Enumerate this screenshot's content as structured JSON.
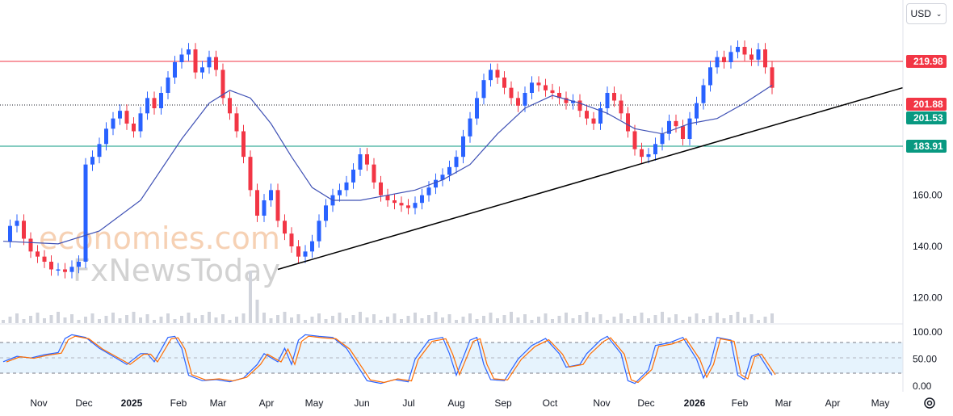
{
  "currency": {
    "label": "USD"
  },
  "watermark": {
    "line1": "economies.com",
    "line2": "FxNewsToday"
  },
  "chart_data": {
    "type": "candlestick",
    "price_axis": {
      "min": 110,
      "max": 230,
      "ticks": [
        "180.00",
        "160.00",
        "140.00",
        "120.00"
      ]
    },
    "oscillator_axis": {
      "ticks": [
        "100.00",
        "50.00",
        "0.00"
      ]
    },
    "x_ticks": [
      {
        "label": "Nov",
        "bold": false
      },
      {
        "label": "Dec",
        "bold": false
      },
      {
        "label": "2025",
        "bold": true
      },
      {
        "label": "Feb",
        "bold": false
      },
      {
        "label": "Mar",
        "bold": false
      },
      {
        "label": "Apr",
        "bold": false
      },
      {
        "label": "May",
        "bold": false
      },
      {
        "label": "Jun",
        "bold": false
      },
      {
        "label": "Jul",
        "bold": false
      },
      {
        "label": "Aug",
        "bold": false
      },
      {
        "label": "Sep",
        "bold": false
      },
      {
        "label": "Oct",
        "bold": false
      },
      {
        "label": "Nov",
        "bold": false
      },
      {
        "label": "Dec",
        "bold": false
      },
      {
        "label": "2026",
        "bold": true
      },
      {
        "label": "Feb",
        "bold": false
      },
      {
        "label": "Mar",
        "bold": false
      },
      {
        "label": "Apr",
        "bold": false
      },
      {
        "label": "May",
        "bold": false
      }
    ],
    "levels": [
      {
        "value": "219.98",
        "color": "#f23645",
        "line": "solid"
      },
      {
        "value": "201.88",
        "color": "#f23645",
        "line": "dotted"
      },
      {
        "value": "201.53",
        "color": "#089981",
        "line": "none"
      },
      {
        "value": "183.91",
        "color": "#089981",
        "line": "solid"
      }
    ],
    "close_path": [
      [
        0,
        142
      ],
      [
        1,
        148
      ],
      [
        2,
        150
      ],
      [
        3,
        143
      ],
      [
        4,
        138
      ],
      [
        5,
        136
      ],
      [
        6,
        134
      ],
      [
        7,
        131
      ],
      [
        8,
        131
      ],
      [
        9,
        130
      ],
      [
        10,
        132
      ],
      [
        11,
        134
      ],
      [
        12,
        172
      ],
      [
        13,
        175
      ],
      [
        14,
        180
      ],
      [
        15,
        186
      ],
      [
        16,
        190
      ],
      [
        17,
        193
      ],
      [
        18,
        188
      ],
      [
        19,
        185
      ],
      [
        20,
        192
      ],
      [
        21,
        198
      ],
      [
        22,
        194
      ],
      [
        23,
        200
      ],
      [
        24,
        206
      ],
      [
        25,
        212
      ],
      [
        26,
        215
      ],
      [
        27,
        217
      ],
      [
        28,
        208
      ],
      [
        29,
        210
      ],
      [
        30,
        214
      ],
      [
        31,
        209
      ],
      [
        32,
        198
      ],
      [
        33,
        192
      ],
      [
        34,
        185
      ],
      [
        35,
        175
      ],
      [
        36,
        162
      ],
      [
        37,
        152
      ],
      [
        38,
        158
      ],
      [
        39,
        162
      ],
      [
        40,
        150
      ],
      [
        41,
        145
      ],
      [
        42,
        140
      ],
      [
        43,
        136
      ],
      [
        44,
        138
      ],
      [
        45,
        142
      ],
      [
        46,
        150
      ],
      [
        47,
        156
      ],
      [
        48,
        160
      ],
      [
        49,
        162
      ],
      [
        50,
        165
      ],
      [
        51,
        170
      ],
      [
        52,
        176
      ],
      [
        53,
        172
      ],
      [
        54,
        165
      ],
      [
        55,
        160
      ],
      [
        56,
        158
      ],
      [
        57,
        157
      ],
      [
        58,
        156
      ],
      [
        59,
        155
      ],
      [
        60,
        157
      ],
      [
        61,
        160
      ],
      [
        62,
        163
      ],
      [
        63,
        166
      ],
      [
        64,
        168
      ],
      [
        65,
        171
      ],
      [
        66,
        175
      ],
      [
        67,
        183
      ],
      [
        68,
        190
      ],
      [
        69,
        198
      ],
      [
        70,
        205
      ],
      [
        71,
        209
      ],
      [
        72,
        206
      ],
      [
        73,
        202
      ],
      [
        74,
        198
      ],
      [
        75,
        195
      ],
      [
        76,
        200
      ],
      [
        77,
        204
      ],
      [
        78,
        203
      ],
      [
        79,
        201
      ],
      [
        80,
        200
      ],
      [
        81,
        198
      ],
      [
        82,
        196
      ],
      [
        83,
        197
      ],
      [
        84,
        193
      ],
      [
        85,
        190
      ],
      [
        86,
        188
      ],
      [
        87,
        194
      ],
      [
        88,
        200
      ],
      [
        89,
        197
      ],
      [
        90,
        192
      ],
      [
        91,
        185
      ],
      [
        92,
        178
      ],
      [
        93,
        175
      ],
      [
        94,
        176
      ],
      [
        95,
        180
      ],
      [
        96,
        184
      ],
      [
        97,
        189
      ],
      [
        98,
        187
      ],
      [
        99,
        182
      ],
      [
        100,
        190
      ],
      [
        101,
        196
      ],
      [
        102,
        203
      ],
      [
        103,
        210
      ],
      [
        104,
        214
      ],
      [
        105,
        212
      ],
      [
        106,
        216
      ],
      [
        107,
        218
      ],
      [
        108,
        215
      ],
      [
        109,
        213
      ],
      [
        110,
        217
      ],
      [
        111,
        210
      ],
      [
        112,
        202
      ]
    ],
    "ma_path": [
      [
        0,
        142
      ],
      [
        8,
        141
      ],
      [
        14,
        146
      ],
      [
        20,
        158
      ],
      [
        26,
        182
      ],
      [
        30,
        196
      ],
      [
        33,
        201
      ],
      [
        36,
        198
      ],
      [
        39,
        188
      ],
      [
        42,
        175
      ],
      [
        45,
        163
      ],
      [
        48,
        158
      ],
      [
        52,
        158
      ],
      [
        56,
        160
      ],
      [
        60,
        162
      ],
      [
        64,
        166
      ],
      [
        68,
        172
      ],
      [
        72,
        184
      ],
      [
        76,
        194
      ],
      [
        80,
        199
      ],
      [
        84,
        196
      ],
      [
        88,
        192
      ],
      [
        92,
        186
      ],
      [
        96,
        184
      ],
      [
        100,
        188
      ],
      [
        104,
        190
      ],
      [
        108,
        196
      ],
      [
        112,
        203
      ]
    ],
    "trendline": {
      "from": [
        40,
        131
      ],
      "to": [
        131,
        202
      ]
    },
    "stoch_path_k": [
      [
        0,
        45
      ],
      [
        2,
        55
      ],
      [
        4,
        52
      ],
      [
        6,
        58
      ],
      [
        8,
        62
      ],
      [
        9,
        88
      ],
      [
        10,
        95
      ],
      [
        12,
        90
      ],
      [
        14,
        70
      ],
      [
        16,
        55
      ],
      [
        18,
        40
      ],
      [
        20,
        60
      ],
      [
        21,
        60
      ],
      [
        22,
        45
      ],
      [
        24,
        90
      ],
      [
        25,
        92
      ],
      [
        26,
        70
      ],
      [
        27,
        20
      ],
      [
        29,
        10
      ],
      [
        31,
        12
      ],
      [
        33,
        8
      ],
      [
        35,
        15
      ],
      [
        37,
        40
      ],
      [
        38,
        60
      ],
      [
        40,
        45
      ],
      [
        41,
        70
      ],
      [
        42,
        40
      ],
      [
        43,
        85
      ],
      [
        44,
        95
      ],
      [
        46,
        92
      ],
      [
        48,
        90
      ],
      [
        50,
        70
      ],
      [
        52,
        30
      ],
      [
        53,
        10
      ],
      [
        55,
        5
      ],
      [
        57,
        12
      ],
      [
        59,
        8
      ],
      [
        60,
        50
      ],
      [
        62,
        85
      ],
      [
        64,
        90
      ],
      [
        65,
        60
      ],
      [
        66,
        20
      ],
      [
        68,
        85
      ],
      [
        69,
        90
      ],
      [
        70,
        40
      ],
      [
        71,
        12
      ],
      [
        73,
        10
      ],
      [
        75,
        50
      ],
      [
        77,
        75
      ],
      [
        79,
        88
      ],
      [
        81,
        60
      ],
      [
        82,
        35
      ],
      [
        84,
        40
      ],
      [
        85,
        60
      ],
      [
        87,
        85
      ],
      [
        88,
        92
      ],
      [
        90,
        60
      ],
      [
        91,
        10
      ],
      [
        92,
        5
      ],
      [
        94,
        30
      ],
      [
        95,
        75
      ],
      [
        97,
        80
      ],
      [
        99,
        90
      ],
      [
        101,
        50
      ],
      [
        102,
        15
      ],
      [
        103,
        40
      ],
      [
        104,
        90
      ],
      [
        106,
        85
      ],
      [
        107,
        20
      ],
      [
        108,
        12
      ],
      [
        109,
        55
      ],
      [
        110,
        60
      ],
      [
        111,
        40
      ],
      [
        112,
        20
      ]
    ]
  }
}
